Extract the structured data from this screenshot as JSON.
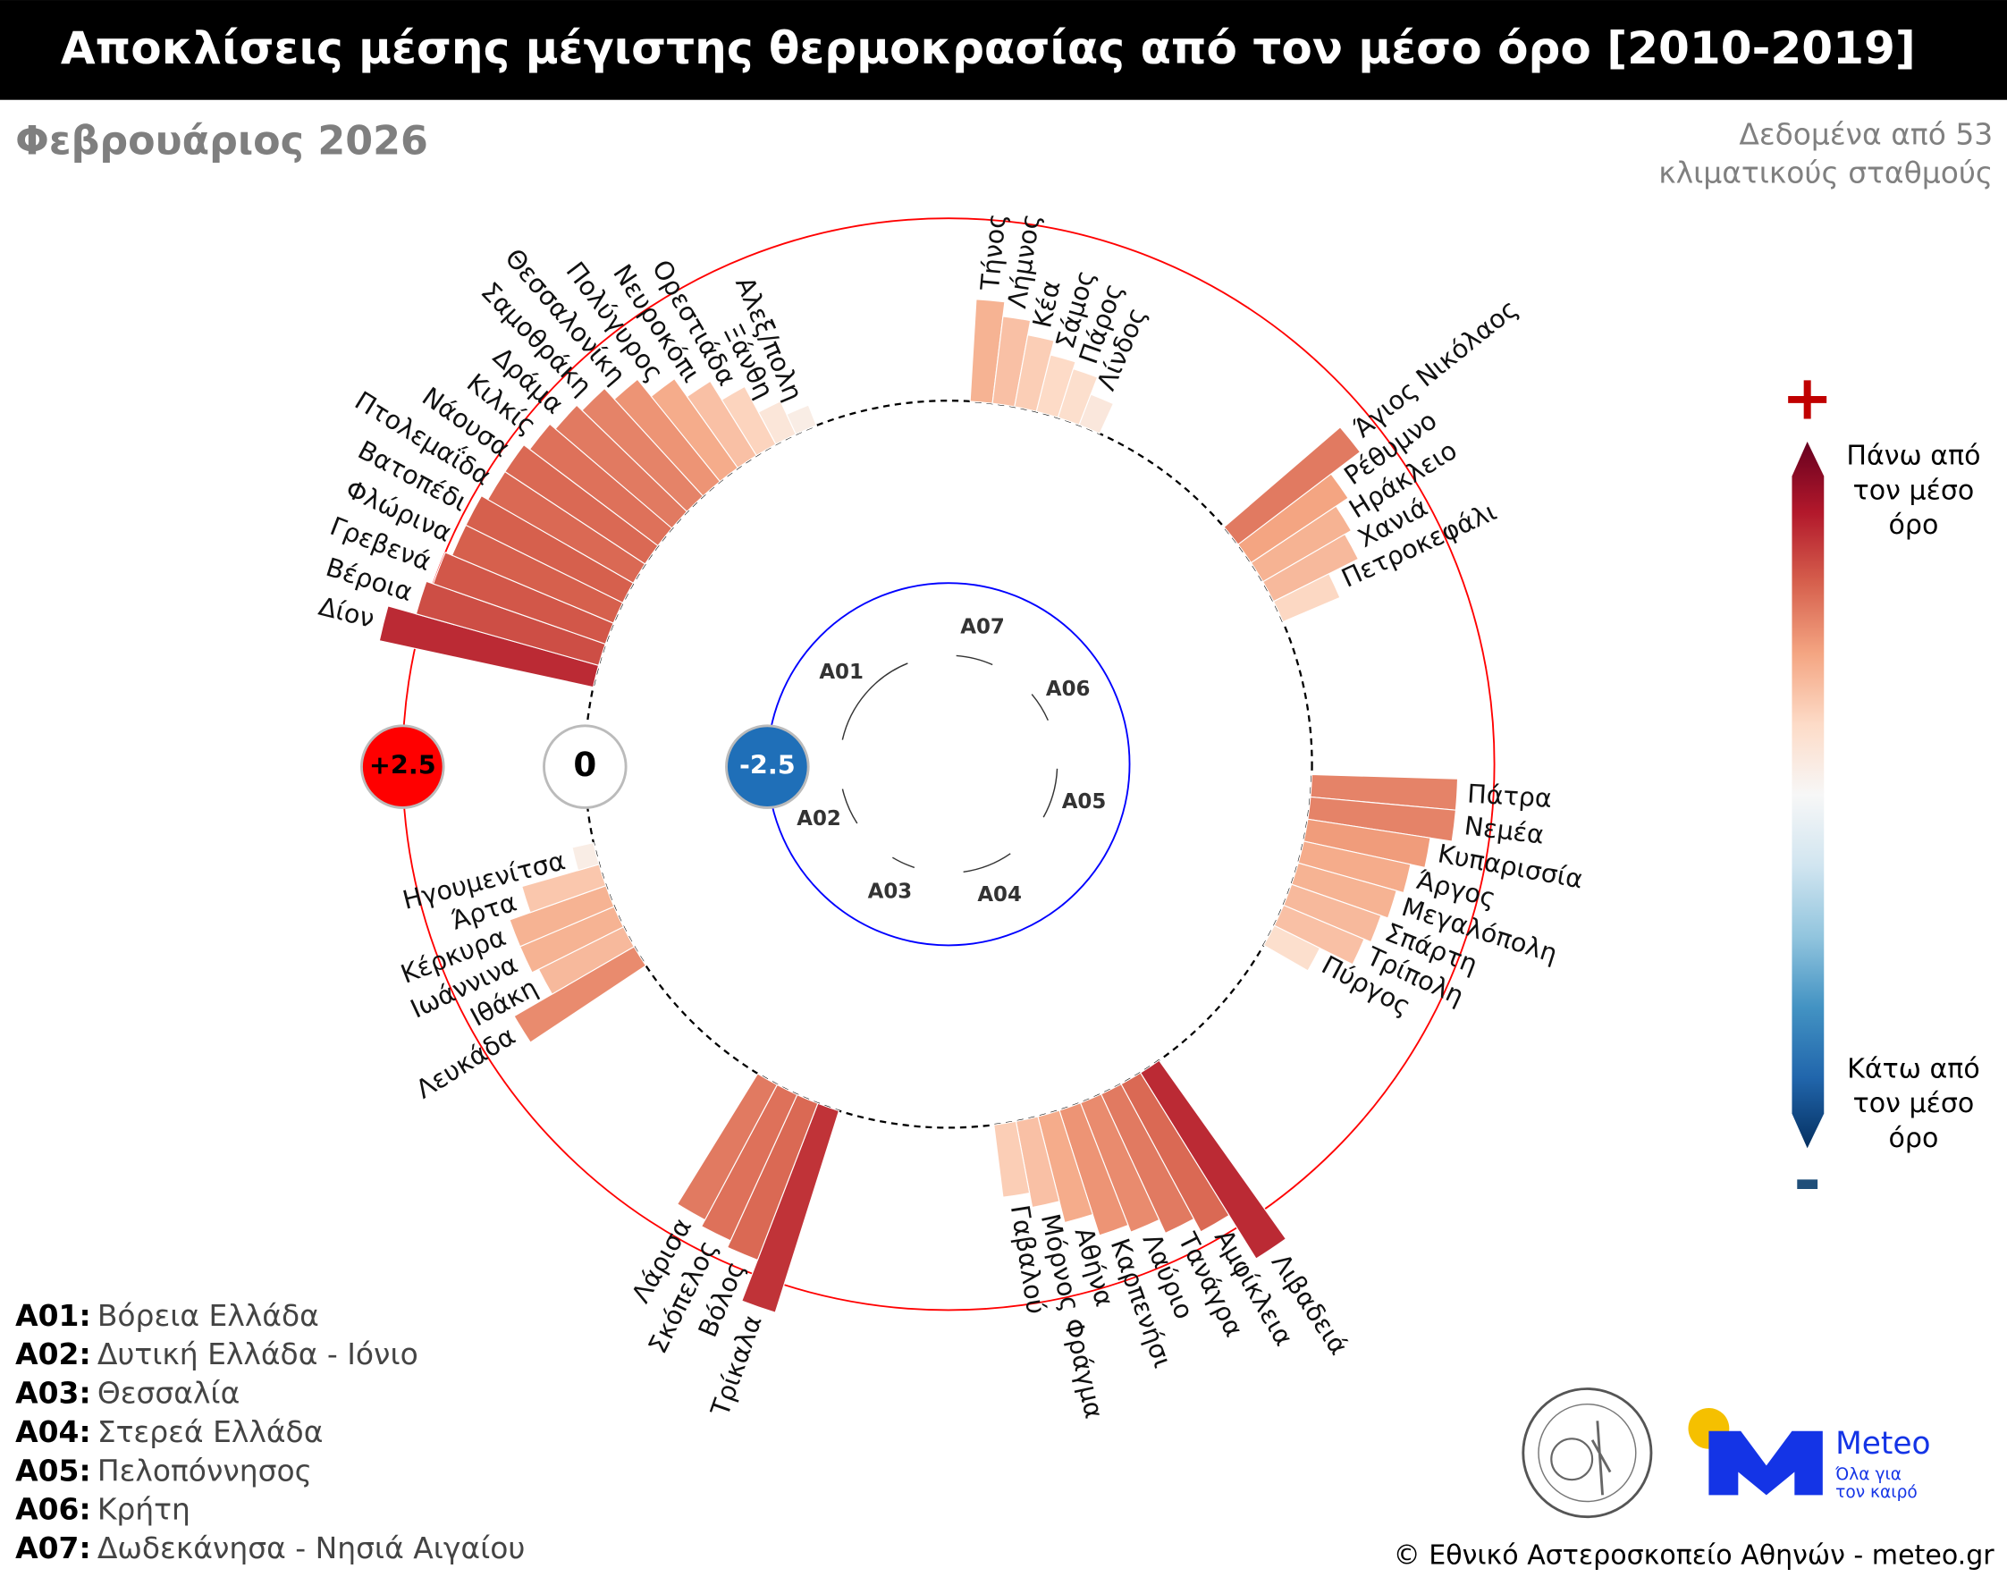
{
  "header": {
    "title": "Αποκλίσεις μέσης μέγιστης θερμοκρασίας από τον μέσο όρο [2010-2019]",
    "subtitle": "Φεβρουάριος 2026",
    "note": [
      "Δεδομένα από 53",
      "κλιματικούς σταθμούς"
    ]
  },
  "chart_data": {
    "type": "polar_bar",
    "groups": [
      {
        "code": "A01",
        "categories": [
          "Δίον",
          "Βέροια",
          "Γρεβενά",
          "Φλώρινα",
          "Βατοπέδι",
          "Πτολεμαΐδα",
          "Νάουσα",
          "Κιλκίς",
          "Δράμα",
          "Σαμοθράκη",
          "Θεσσαλονίκη",
          "Πολύγυρος",
          "Νευροκόπι",
          "Ορεστιάδα",
          "Ξάνθη",
          "Αλεξ/πολη"
        ],
        "values": [
          3.0,
          2.6,
          2.5,
          2.4,
          2.4,
          2.3,
          2.3,
          2.2,
          2.1,
          2.0,
          1.8,
          1.5,
          1.2,
          0.9,
          0.5,
          0.3
        ]
      },
      {
        "code": "A07",
        "categories": [
          "Τήνος",
          "Λήμνος",
          "Κέα",
          "Σάμος",
          "Πάρος",
          "Λίνδος"
        ],
        "values": [
          1.4,
          1.2,
          1.0,
          0.8,
          0.7,
          0.45
        ]
      },
      {
        "code": "A06",
        "categories": [
          "Άγιος Νικόλαος",
          "Ρέθυμνο",
          "Ηράκλειο",
          "Χανιά",
          "Πετροκεφάλι"
        ],
        "values": [
          2.1,
          1.6,
          1.4,
          1.3,
          0.85
        ]
      },
      {
        "code": "A05",
        "categories": [
          "Πάτρα",
          "Νεμέα",
          "Κυπαρισσία",
          "Άργος",
          "Μεγαλόπολη",
          "Σπάρτη",
          "Τρίπολη",
          "Πύργος"
        ],
        "values": [
          2.0,
          2.0,
          1.7,
          1.5,
          1.4,
          1.3,
          1.2,
          0.7
        ]
      },
      {
        "code": "A04",
        "categories": [
          "Λιβαδειά",
          "Αμφίκλεια",
          "Τανάγρα",
          "Λαύριο",
          "Καρπενήσι",
          "Αθήνα",
          "Μόρνος Φράγμα",
          "Γαβαλού"
        ],
        "values": [
          3.0,
          2.3,
          2.1,
          1.9,
          1.8,
          1.5,
          1.2,
          1.0
        ]
      },
      {
        "code": "A03",
        "categories": [
          "Τρίκαλα",
          "Βόλος",
          "Σκόπελος",
          "Λάρισα"
        ],
        "values": [
          2.9,
          2.3,
          2.2,
          2.1
        ]
      },
      {
        "code": "A02",
        "categories": [
          "Λευκάδα",
          "Ιθάκη",
          "Ιωάννινα",
          "Κέρκυρα",
          "Άρτα",
          "Ηγουμενίτσα"
        ],
        "values": [
          1.9,
          1.3,
          1.4,
          1.4,
          1.1,
          0.3
        ]
      }
    ],
    "rticks": [
      -2.5,
      0,
      {
        "value": 2.5,
        "label": "+2.5"
      }
    ],
    "rtick_colors": [
      "#0000ff",
      "#000000",
      "#ff0000"
    ],
    "rtick_badge_colors": [
      "#1f6fb8",
      "#ffffff",
      "#ff0000"
    ],
    "colormap": [
      "#053061",
      "#2166ac",
      "#4393c3",
      "#92c5de",
      "#d1e5f0",
      "#f7f7f7",
      "#fddbc7",
      "#f4a582",
      "#d6604d",
      "#b2182b",
      "#67001f"
    ],
    "colorbar": {
      "high_symbol": "+",
      "high_label": [
        "Πάνω από",
        "τον μέσο",
        "όρο"
      ],
      "low_symbol": "-",
      "low_label": [
        "Κάτω από",
        "τον μέσο",
        "όρο"
      ]
    },
    "legend": [
      {
        "key": "A01:",
        "name": "Βόρεια Ελλάδα"
      },
      {
        "key": "A02:",
        "name": "Δυτική Ελλάδα - Ιόνιο"
      },
      {
        "key": "A03:",
        "name": "Θεσσαλία"
      },
      {
        "key": "A04:",
        "name": "Στερεά Ελλάδα"
      },
      {
        "key": "A05:",
        "name": "Πελοπόννησος"
      },
      {
        "key": "A06:",
        "name": "Κρήτη"
      },
      {
        "key": "A07:",
        "name": "Δωδεκάνησα - Νησιά Αιγαίου"
      }
    ]
  },
  "footer": {
    "copyright": "© Εθνικό Αστεροσκοπείο Αθηνών - meteo.gr",
    "logo_text": "Meteo",
    "logo_tagline": [
      "Όλα για",
      "τον καιρό"
    ]
  }
}
